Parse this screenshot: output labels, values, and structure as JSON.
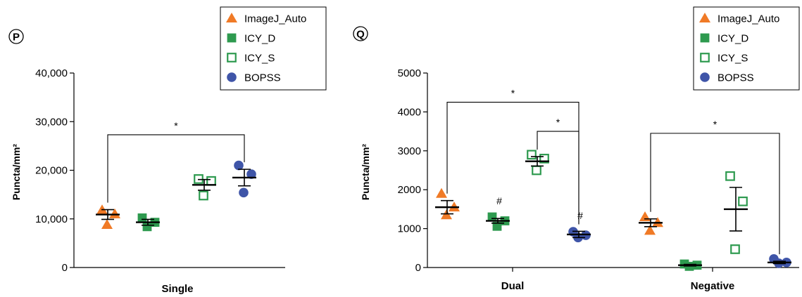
{
  "legend": {
    "items": [
      {
        "label": "ImageJ_Auto",
        "shape": "triangle",
        "color": "#f07a26"
      },
      {
        "label": "ICY_D",
        "shape": "filled-square",
        "color": "#2e9a4f"
      },
      {
        "label": "ICY_S",
        "shape": "open-square",
        "color": "#2e9a4f"
      },
      {
        "label": "BOPSS",
        "shape": "circle",
        "color": "#3f55a8"
      }
    ]
  },
  "chart_data": [
    {
      "type": "scatter",
      "panel_label": "P",
      "ylabel": "Puncta/mm²",
      "ylim": [
        0,
        40000
      ],
      "yticks": [
        0,
        10000,
        20000,
        30000,
        40000
      ],
      "ytick_labels": [
        "0",
        "10,000",
        "20,000",
        "30,000",
        "40,000"
      ],
      "groups": [
        "Single"
      ],
      "series": [
        {
          "name": "ImageJ_Auto",
          "points": [
            [
              11800,
              11000,
              8800
            ]
          ],
          "mean": [
            10900
          ],
          "sem": [
            1000
          ]
        },
        {
          "name": "ICY_D",
          "points": [
            [
              10200,
              9300,
              8400
            ]
          ],
          "mean": [
            9300
          ],
          "sem": [
            600
          ]
        },
        {
          "name": "ICY_S",
          "points": [
            [
              18200,
              17800,
              14800
            ]
          ],
          "mean": [
            17000
          ],
          "sem": [
            1100
          ]
        },
        {
          "name": "BOPSS",
          "points": [
            [
              21000,
              19200,
              15400
            ]
          ],
          "mean": [
            18500
          ],
          "sem": [
            1700
          ]
        }
      ],
      "significance": [
        {
          "text": "*",
          "from": "ImageJ_Auto",
          "to": "BOPSS",
          "group": "Single"
        }
      ],
      "marks": []
    },
    {
      "type": "scatter",
      "panel_label": "Q",
      "ylabel": "Puncta/mm²",
      "ylim": [
        0,
        5000
      ],
      "yticks": [
        0,
        1000,
        2000,
        3000,
        4000,
        5000
      ],
      "ytick_labels": [
        "0",
        "1000",
        "2000",
        "3000",
        "4000",
        "5000"
      ],
      "groups": [
        "Dual",
        "Negative"
      ],
      "series": [
        {
          "name": "ImageJ_Auto",
          "points": [
            [
              1900,
              1550,
              1350
            ],
            [
              1300,
              1150,
              950
            ]
          ],
          "mean": [
            1550,
            1150
          ],
          "sem": [
            170,
            100
          ]
        },
        {
          "name": "ICY_D",
          "points": [
            [
              1300,
              1200,
              1060
            ],
            [
              90,
              60,
              30
            ]
          ],
          "mean": [
            1200,
            60
          ],
          "sem": [
            60,
            20
          ]
        },
        {
          "name": "ICY_S",
          "points": [
            [
              2900,
              2800,
              2500
            ],
            [
              2350,
              1700,
              470
            ]
          ],
          "mean": [
            2730,
            1500
          ],
          "sem": [
            120,
            560
          ]
        },
        {
          "name": "BOPSS",
          "points": [
            [
              920,
              830,
              770
            ],
            [
              220,
              130,
              110
            ]
          ],
          "mean": [
            850,
            130
          ],
          "sem": [
            80,
            30
          ]
        }
      ],
      "significance": [
        {
          "text": "*",
          "from": "ImageJ_Auto",
          "to": "BOPSS",
          "group": "Dual",
          "level": 4250
        },
        {
          "text": "*",
          "from": "ICY_S",
          "to": "BOPSS",
          "group": "Dual",
          "level": 3500
        },
        {
          "text": "*",
          "from": "ImageJ_Auto",
          "to": "BOPSS",
          "group": "Negative",
          "level": 3450
        }
      ],
      "marks": [
        {
          "text": "#",
          "series": "ICY_D",
          "group": "Dual"
        },
        {
          "text": "#",
          "series": "BOPSS",
          "group": "Dual"
        }
      ]
    }
  ]
}
